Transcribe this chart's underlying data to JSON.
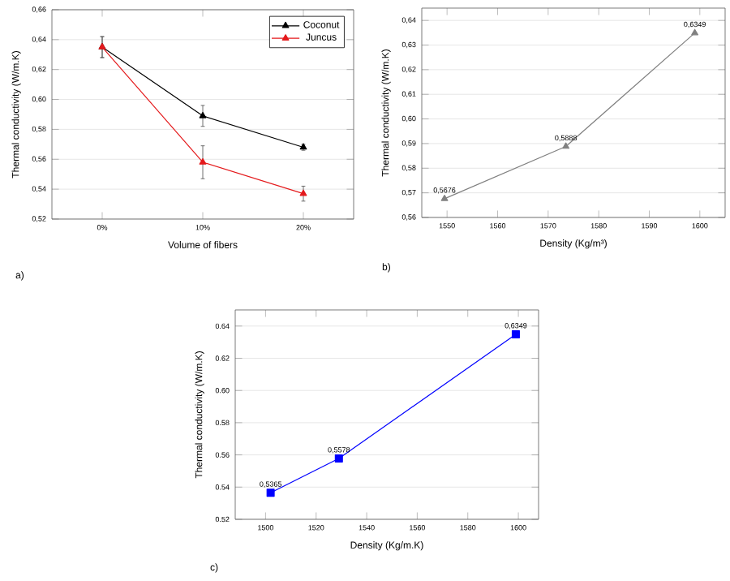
{
  "chart_data": [
    {
      "type": "line",
      "xlabel": "Volume of fibers",
      "ylabel": "Thermal conductivity (W/m.K)",
      "categories": [
        "0%",
        "10%",
        "20%"
      ],
      "ylim": [
        0.52,
        0.66
      ],
      "yticks": [
        {
          "value": 0.52,
          "label": "0,52"
        },
        {
          "value": 0.54,
          "label": "0,54"
        },
        {
          "value": 0.56,
          "label": "0,56"
        },
        {
          "value": 0.58,
          "label": "0,58"
        },
        {
          "value": 0.6,
          "label": "0,60"
        },
        {
          "value": 0.62,
          "label": "0,62"
        },
        {
          "value": 0.64,
          "label": "0,64"
        },
        {
          "value": 0.66,
          "label": "0,66"
        }
      ],
      "series": [
        {
          "name": "Coconut",
          "color": "#000000",
          "values": [
            0.635,
            0.589,
            0.568
          ],
          "errors": [
            0.007,
            0.007,
            0.002
          ]
        },
        {
          "name": "Juncus",
          "color": "#e41a1c",
          "values": [
            0.635,
            0.558,
            0.537
          ],
          "errors": [
            0.007,
            0.011,
            0.005
          ]
        }
      ],
      "grid": "y",
      "legend": "top right",
      "marker": "triangle",
      "annotations": [
        "a)"
      ]
    },
    {
      "type": "line",
      "xlabel": "Density (Kg/m³)",
      "ylabel": "Thermal conductivity (W/m.K)",
      "x": [
        1549.5,
        1573.5,
        1599
      ],
      "xlim": [
        1545,
        1605
      ],
      "xticks": [
        1550,
        1560,
        1570,
        1580,
        1590,
        1600
      ],
      "ylim": [
        0.56,
        0.645
      ],
      "yticks": [
        {
          "value": 0.56,
          "label": "0,56"
        },
        {
          "value": 0.57,
          "label": "0,57"
        },
        {
          "value": 0.58,
          "label": "0,58"
        },
        {
          "value": 0.59,
          "label": "0,59"
        },
        {
          "value": 0.6,
          "label": "0,60"
        },
        {
          "value": 0.61,
          "label": "0,61"
        },
        {
          "value": 0.62,
          "label": "0,62"
        },
        {
          "value": 0.63,
          "label": "0,63"
        },
        {
          "value": 0.64,
          "label": "0,64"
        }
      ],
      "series": [
        {
          "color": "#808080",
          "values": [
            0.5676,
            0.5888,
            0.6349
          ],
          "value_labels": [
            "0,5676",
            "0,5888",
            "0,6349"
          ]
        }
      ],
      "grid": "y",
      "marker": "triangle",
      "annotations": [
        "b)"
      ]
    },
    {
      "type": "line",
      "xlabel": "Density (Kg/m.K)",
      "ylabel": "Thermal conductivity (W/m.K)",
      "x": [
        1502,
        1529,
        1599
      ],
      "xlim": [
        1488,
        1608
      ],
      "xticks": [
        1500,
        1520,
        1540,
        1560,
        1580,
        1600
      ],
      "ylim": [
        0.52,
        0.65
      ],
      "yticks": [
        {
          "value": 0.52,
          "label": "0.52"
        },
        {
          "value": 0.54,
          "label": "0.54"
        },
        {
          "value": 0.56,
          "label": "0.56"
        },
        {
          "value": 0.58,
          "label": "0.58"
        },
        {
          "value": 0.6,
          "label": "0.60"
        },
        {
          "value": 0.62,
          "label": "0.62"
        },
        {
          "value": 0.64,
          "label": "0.64"
        }
      ],
      "series": [
        {
          "color": "#0000ff",
          "values": [
            0.5365,
            0.5578,
            0.6349
          ],
          "value_labels": [
            "0,5365",
            "0,5578",
            "0,6349"
          ]
        }
      ],
      "grid": "y",
      "marker": "square",
      "annotations": [
        "c)"
      ]
    }
  ]
}
